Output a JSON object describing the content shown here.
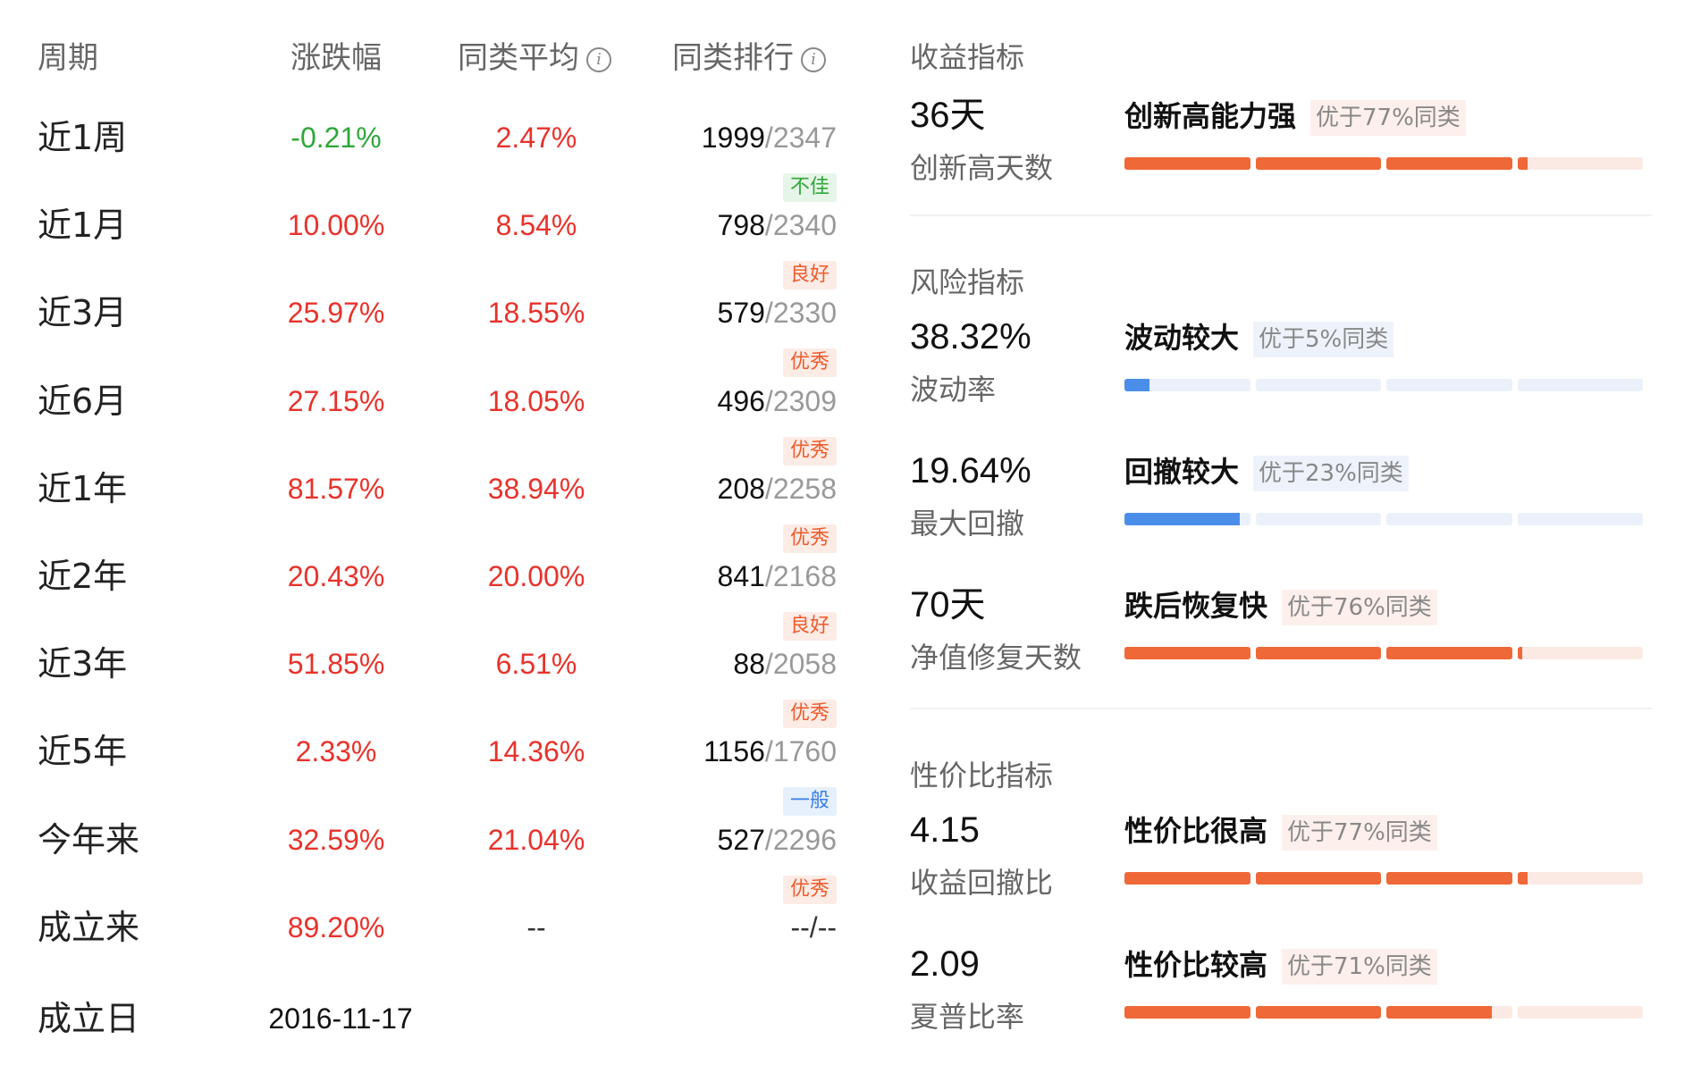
{
  "table": {
    "headers": {
      "period": "周期",
      "change": "涨跌幅",
      "avg": "同类平均",
      "rank": "同类排行"
    },
    "rows": [
      {
        "period": "近1周",
        "change": "-0.21%",
        "change_color": "#2fa73a",
        "avg": "2.47%",
        "avg_color": "#e8322b",
        "rank": "1999",
        "total": "/2347",
        "badge": "不佳",
        "badge_kind": "bad"
      },
      {
        "period": "近1月",
        "change": "10.00%",
        "change_color": "#e8322b",
        "avg": "8.54%",
        "avg_color": "#e8322b",
        "rank": "798",
        "total": "/2340",
        "badge": "良好",
        "badge_kind": "good"
      },
      {
        "period": "近3月",
        "change": "25.97%",
        "change_color": "#e8322b",
        "avg": "18.55%",
        "avg_color": "#e8322b",
        "rank": "579",
        "total": "/2330",
        "badge": "优秀",
        "badge_kind": "good"
      },
      {
        "period": "近6月",
        "change": "27.15%",
        "change_color": "#e8322b",
        "avg": "18.05%",
        "avg_color": "#e8322b",
        "rank": "496",
        "total": "/2309",
        "badge": "优秀",
        "badge_kind": "good"
      },
      {
        "period": "近1年",
        "change": "81.57%",
        "change_color": "#e8322b",
        "avg": "38.94%",
        "avg_color": "#e8322b",
        "rank": "208",
        "total": "/2258",
        "badge": "优秀",
        "badge_kind": "good"
      },
      {
        "period": "近2年",
        "change": "20.43%",
        "change_color": "#e8322b",
        "avg": "20.00%",
        "avg_color": "#e8322b",
        "rank": "841",
        "total": "/2168",
        "badge": "良好",
        "badge_kind": "good"
      },
      {
        "period": "近3年",
        "change": "51.85%",
        "change_color": "#e8322b",
        "avg": "6.51%",
        "avg_color": "#e8322b",
        "rank": "88",
        "total": "/2058",
        "badge": "优秀",
        "badge_kind": "good"
      },
      {
        "period": "近5年",
        "change": "2.33%",
        "change_color": "#e8322b",
        "avg": "14.36%",
        "avg_color": "#e8322b",
        "rank": "1156",
        "total": "/1760",
        "badge": "一般",
        "badge_kind": "mid"
      },
      {
        "period": "今年来",
        "change": "32.59%",
        "change_color": "#e8322b",
        "avg": "21.04%",
        "avg_color": "#e8322b",
        "rank": "527",
        "total": "/2296",
        "badge": "优秀",
        "badge_kind": "good"
      },
      {
        "period": "成立来",
        "change": "89.20%",
        "change_color": "#e8322b",
        "avg": "--",
        "avg_color": "#333333",
        "rank": "--",
        "total": "/--",
        "badge": "",
        "badge_kind": ""
      }
    ],
    "inception": {
      "label": "成立日",
      "date": "2016-11-17"
    }
  },
  "metrics": {
    "income": {
      "title": "收益指标",
      "items": [
        {
          "value": "36天",
          "label": "创新高天数",
          "rating": "创新高能力强",
          "tag": "优于77%同类",
          "percent": 77,
          "theme": "warm"
        }
      ]
    },
    "risk": {
      "title": "风险指标",
      "items": [
        {
          "value": "38.32%",
          "label": "波动率",
          "rating": "波动较大",
          "tag": "优于5%同类",
          "percent": 5,
          "theme": "cool"
        },
        {
          "value": "19.64%",
          "label": "最大回撤",
          "rating": "回撤较大",
          "tag": "优于23%同类",
          "percent": 23,
          "theme": "cool"
        },
        {
          "value": "70天",
          "label": "净值修复天数",
          "rating": "跌后恢复快",
          "tag": "优于76%同类",
          "percent": 76,
          "theme": "warm"
        }
      ]
    },
    "value": {
      "title": "性价比指标",
      "items": [
        {
          "value": "4.15",
          "label": "收益回撤比",
          "rating": "性价比很高",
          "tag": "优于77%同类",
          "percent": 77,
          "theme": "warm"
        },
        {
          "value": "2.09",
          "label": "夏普比率",
          "rating": "性价比较高",
          "tag": "优于71%同类",
          "percent": 71,
          "theme": "warm"
        }
      ]
    }
  }
}
